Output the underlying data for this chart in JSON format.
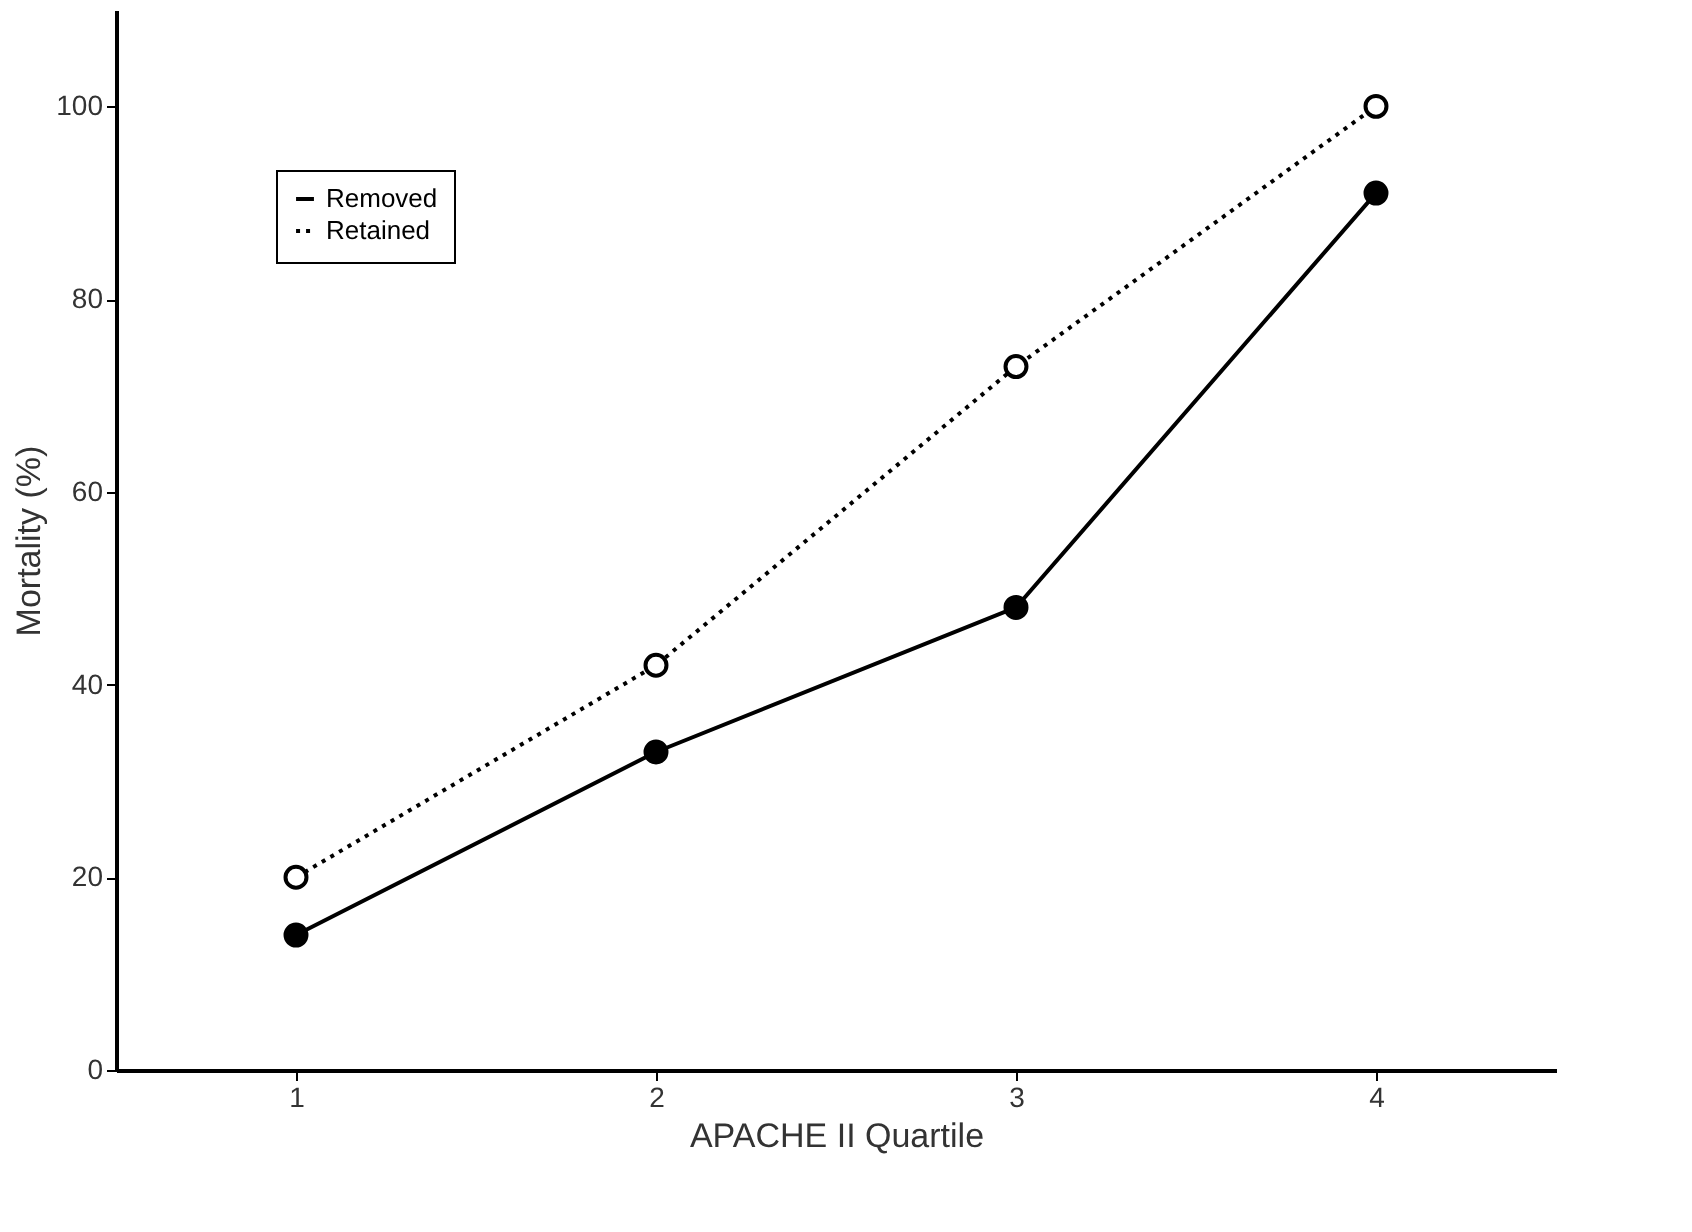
{
  "chart_data": {
    "type": "line",
    "xlabel": "APACHE II Quartile",
    "ylabel": "Mortality (%)",
    "x": [
      1,
      2,
      3,
      4
    ],
    "xlim": [
      0.5,
      4.5
    ],
    "xticks": [
      1,
      2,
      3,
      4
    ],
    "ylim": [
      0,
      110
    ],
    "yticks": [
      0,
      20,
      40,
      60,
      80,
      100
    ],
    "series": [
      {
        "name": "Removed",
        "color": "#000000",
        "values": [
          14,
          33,
          48,
          91
        ],
        "line_style": "solid"
      },
      {
        "name": "Retained",
        "color": "#000000",
        "values": [
          20,
          42,
          73,
          100
        ],
        "line_style": "dotted"
      }
    ],
    "marker": "circle",
    "legend": "top left",
    "grid": false
  }
}
